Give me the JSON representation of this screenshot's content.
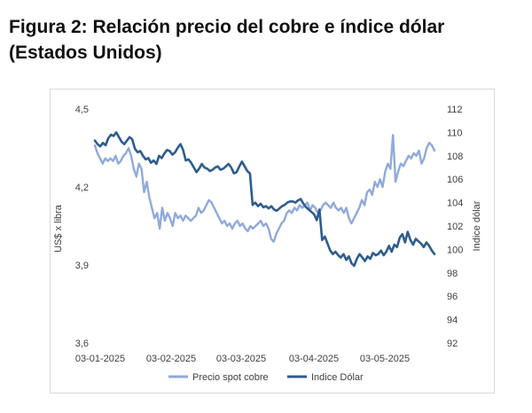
{
  "figure": {
    "title": "Figura 2: Relación precio del cobre e índice dólar (Estados Unidos)"
  },
  "chart_data": {
    "type": "line",
    "title": "",
    "x_tick_labels": [
      "03-01-2025",
      "03-02-2025",
      "03-03-2025",
      "03-04-2025",
      "03-05-2025"
    ],
    "ylabel_left": "US$ x libra",
    "ylabel_right": "Indice dólar",
    "ylim_left": [
      3.6,
      4.5
    ],
    "ylim_right": [
      92,
      112
    ],
    "y_left_ticks": [
      "3,6",
      "3,9",
      "4,2",
      "4,5"
    ],
    "y_right_ticks": [
      "92",
      "94",
      "96",
      "98",
      "100",
      "102",
      "104",
      "106",
      "108",
      "110",
      "112"
    ],
    "grid": false,
    "legend_position": "bottom",
    "series": [
      {
        "name": "Precio spot cobre",
        "axis": "left",
        "color": "#8faadc",
        "values": [
          4.36,
          4.33,
          4.31,
          4.29,
          4.31,
          4.3,
          4.31,
          4.3,
          4.32,
          4.29,
          4.3,
          4.32,
          4.33,
          4.35,
          4.32,
          4.27,
          4.24,
          4.29,
          4.27,
          4.18,
          4.22,
          4.16,
          4.12,
          4.08,
          4.1,
          4.04,
          4.12,
          4.07,
          4.1,
          4.08,
          4.05,
          4.1,
          4.08,
          4.09,
          4.07,
          4.09,
          4.08,
          4.07,
          4.08,
          4.09,
          4.12,
          4.1,
          4.11,
          4.13,
          4.15,
          4.14,
          4.12,
          4.1,
          4.08,
          4.06,
          4.07,
          4.05,
          4.06,
          4.04,
          4.06,
          4.07,
          4.05,
          4.06,
          4.04,
          4.03,
          4.05,
          4.04,
          4.05,
          4.06,
          4.07,
          4.05,
          4.06,
          4.04,
          4.0,
          3.99,
          4.02,
          4.04,
          4.06,
          4.07,
          4.1,
          4.11,
          4.1,
          4.12,
          4.11,
          4.13,
          4.12,
          4.13,
          4.14,
          4.11,
          4.13,
          4.12,
          4.1,
          4.11,
          4.13,
          4.14,
          4.13,
          4.12,
          4.14,
          4.12,
          4.11,
          4.12,
          4.1,
          4.12,
          4.08,
          4.06,
          4.08,
          4.1,
          4.12,
          4.15,
          4.13,
          4.18,
          4.19,
          4.17,
          4.22,
          4.2,
          4.23,
          4.2,
          4.26,
          4.29,
          4.27,
          4.4,
          4.22,
          4.26,
          4.29,
          4.28,
          4.3,
          4.32,
          4.31,
          4.33,
          4.32,
          4.34,
          4.29,
          4.31,
          4.35,
          4.37,
          4.36,
          4.34
        ]
      },
      {
        "name": "Indice Dólar",
        "axis": "right",
        "color": "#2e5d8e",
        "values": [
          109.3,
          109.0,
          108.8,
          109.1,
          108.9,
          109.5,
          109.8,
          109.7,
          110.0,
          109.6,
          109.2,
          109.0,
          109.3,
          109.6,
          109.4,
          108.6,
          108.3,
          108.4,
          108.0,
          107.7,
          107.8,
          107.4,
          107.6,
          107.3,
          108.0,
          107.8,
          108.2,
          108.5,
          108.4,
          108.1,
          108.3,
          108.7,
          109.0,
          108.5,
          107.6,
          107.7,
          107.4,
          107.0,
          106.6,
          106.9,
          107.3,
          107.0,
          106.9,
          106.7,
          106.8,
          107.0,
          107.1,
          106.8,
          106.9,
          107.1,
          107.3,
          107.0,
          106.5,
          106.6,
          107.1,
          107.5,
          107.1,
          106.7,
          106.5,
          103.8,
          104.0,
          103.7,
          103.9,
          103.6,
          103.7,
          103.5,
          103.7,
          103.4,
          103.3,
          103.5,
          103.7,
          103.8,
          104.0,
          104.1,
          104.1,
          104.0,
          104.2,
          104.3,
          103.9,
          103.6,
          103.4,
          103.2,
          103.0,
          102.5,
          103.4,
          100.8,
          101.1,
          100.5,
          99.9,
          99.6,
          99.8,
          99.5,
          99.3,
          99.6,
          99.1,
          99.4,
          98.8,
          98.6,
          99.2,
          99.6,
          99.3,
          99.0,
          99.4,
          99.2,
          99.7,
          99.5,
          99.6,
          99.9,
          99.5,
          99.8,
          100.3,
          99.8,
          100.4,
          100.2,
          101.0,
          101.3,
          100.6,
          101.5,
          100.8,
          100.4,
          100.9,
          100.7,
          100.5,
          100.2,
          100.6,
          100.3,
          99.9,
          99.6
        ]
      }
    ]
  }
}
